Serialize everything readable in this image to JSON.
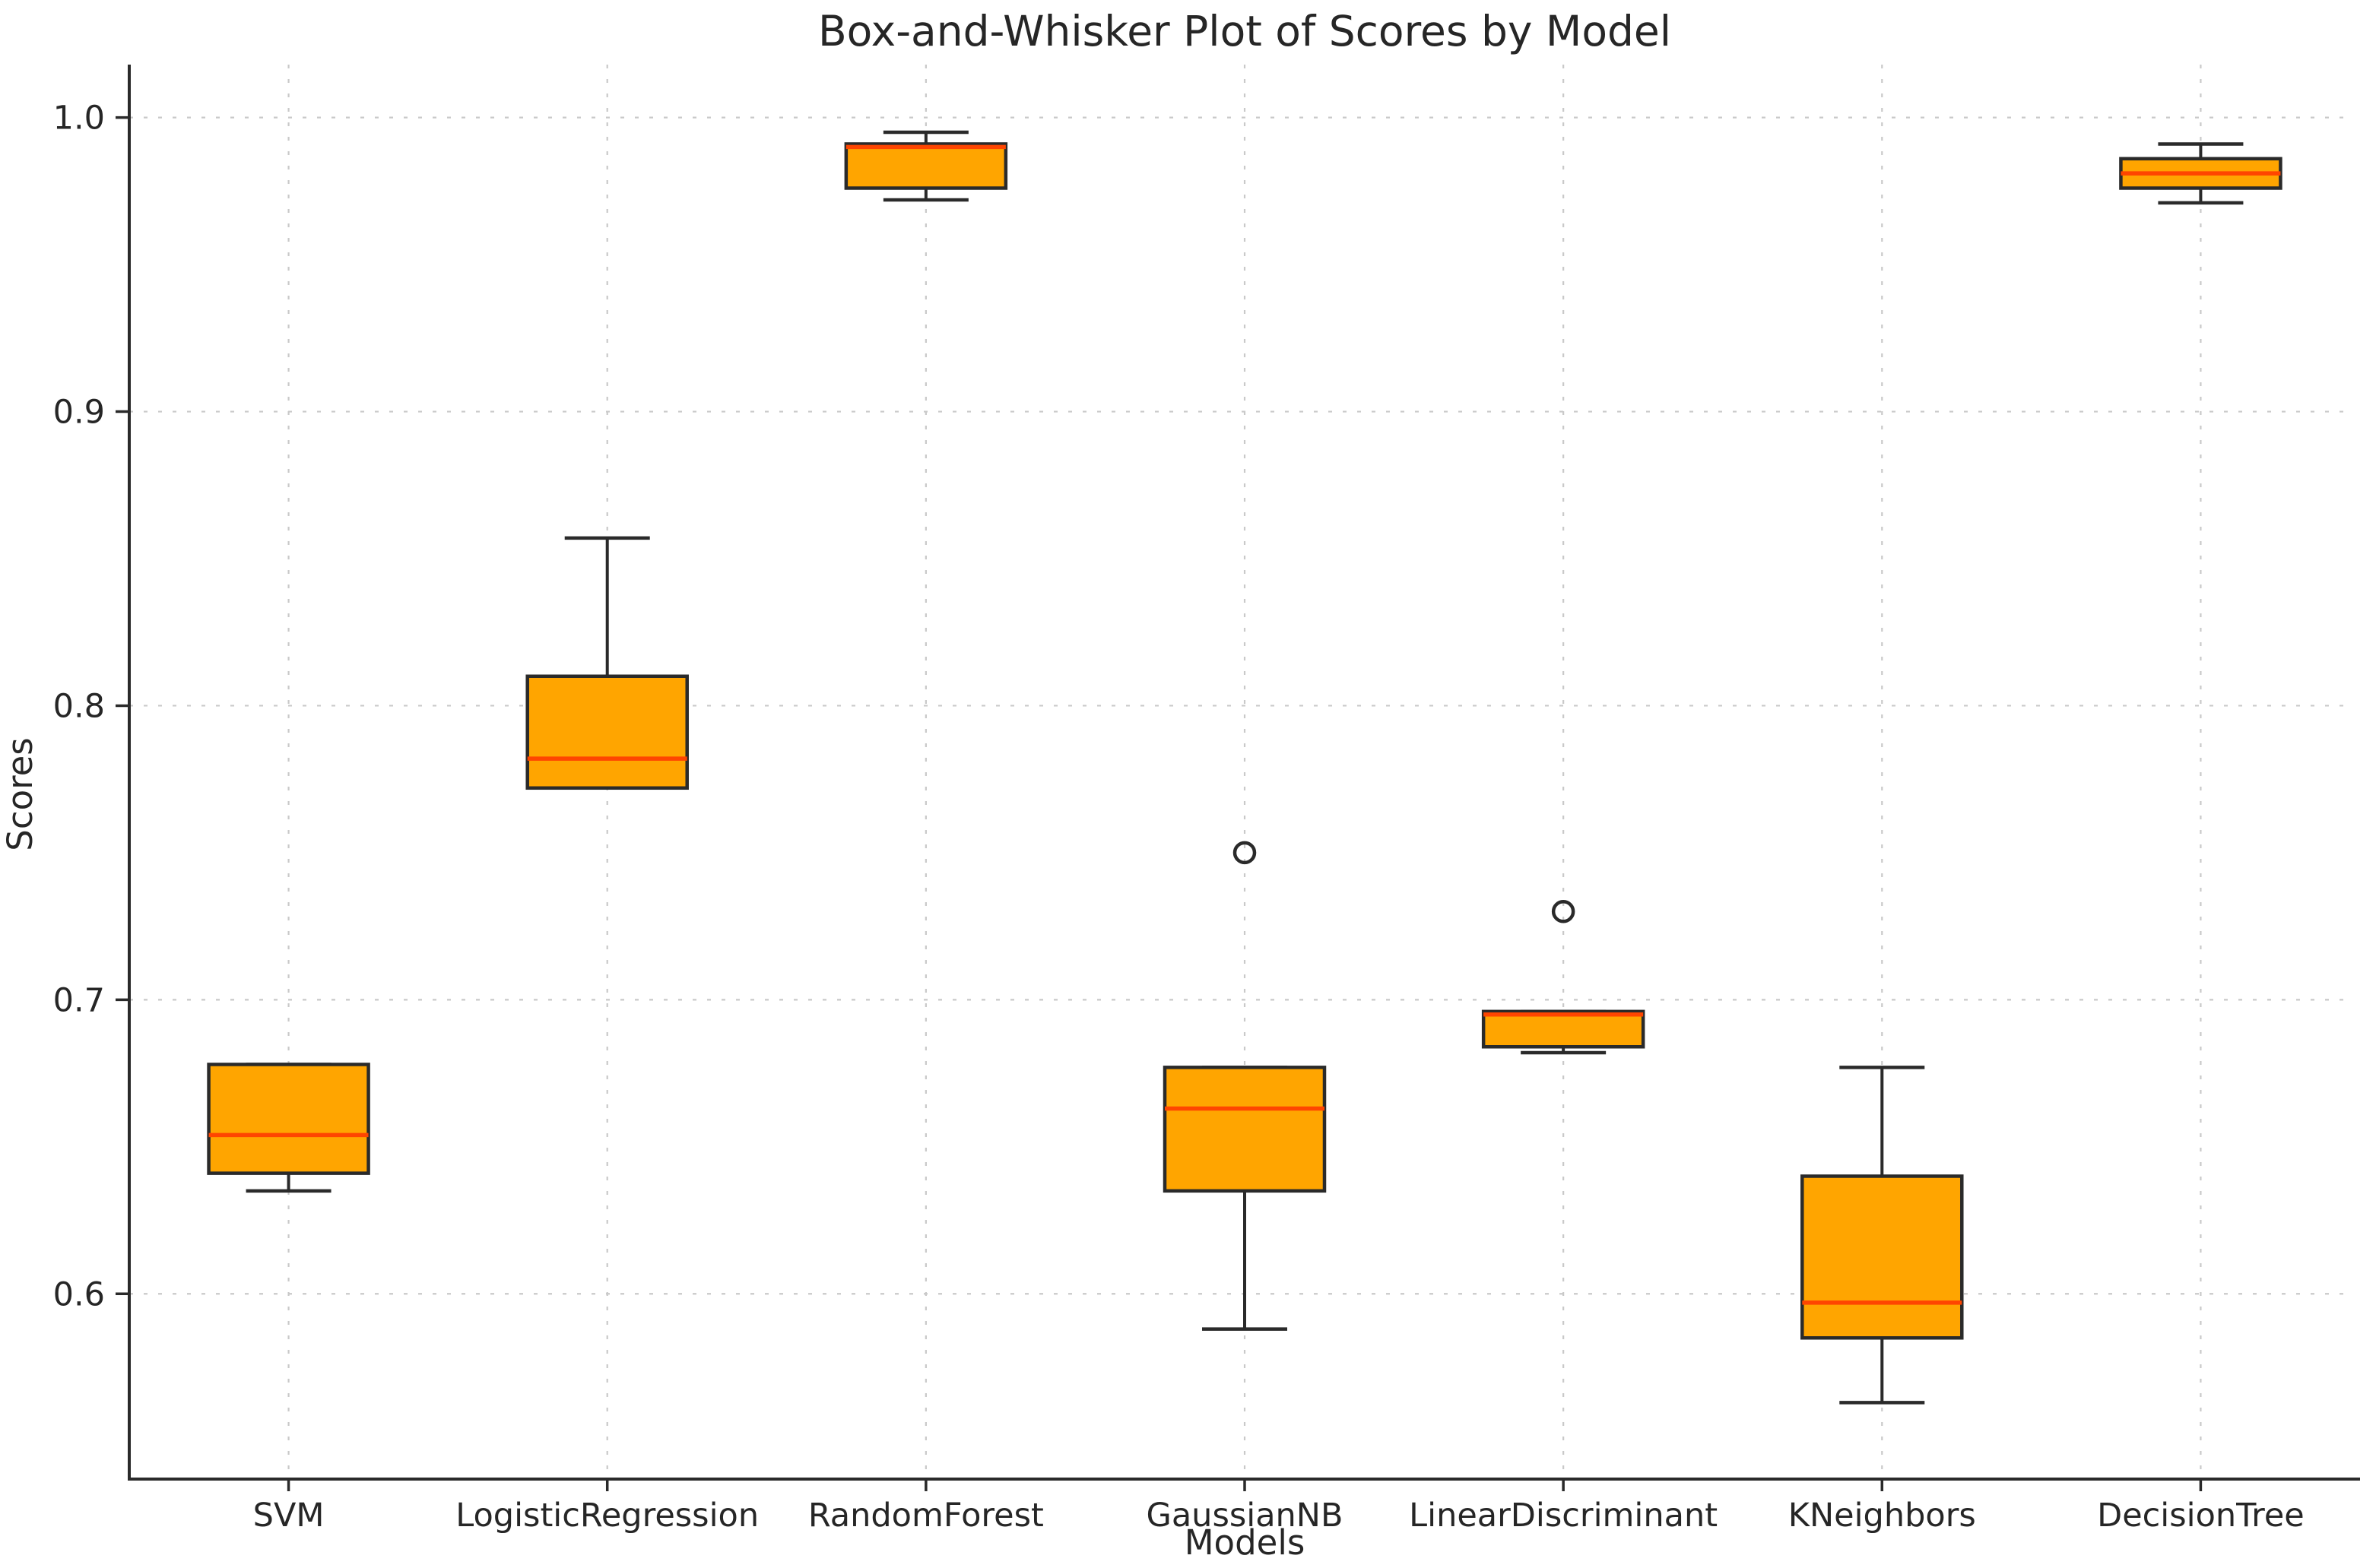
{
  "figure": {
    "title": "Box-and-Whisker Plot of Scores by Model"
  },
  "chart_data": {
    "type": "box",
    "title": "Box-and-Whisker Plot of Scores by Model",
    "xlabel": "Models",
    "ylabel": "Scores",
    "categories": [
      "SVM",
      "LogisticRegression",
      "RandomForest",
      "GaussianNB",
      "LinearDiscriminant",
      "KNeighbors",
      "DecisionTree"
    ],
    "ytick_labels": [
      "1.0",
      "0.9",
      "0.8",
      "0.7",
      "0.6"
    ],
    "ytick_values": [
      1.0,
      0.9,
      0.8,
      0.7,
      0.6
    ],
    "ylim": [
      0.537,
      1.018
    ],
    "grid": {
      "horizontal": true,
      "vertical": true,
      "style": "dotted"
    },
    "legend": "none",
    "boxes": [
      {
        "model": "SVM",
        "whisker_low": 0.635,
        "q1": 0.641,
        "median": 0.654,
        "q3": 0.678,
        "whisker_high": 0.678,
        "outliers": []
      },
      {
        "model": "LogisticRegression",
        "whisker_low": 0.772,
        "q1": 0.772,
        "median": 0.782,
        "q3": 0.81,
        "whisker_high": 0.857,
        "outliers": []
      },
      {
        "model": "RandomForest",
        "whisker_low": 0.972,
        "q1": 0.976,
        "median": 0.99,
        "q3": 0.991,
        "whisker_high": 0.995,
        "outliers": []
      },
      {
        "model": "GaussianNB",
        "whisker_low": 0.588,
        "q1": 0.635,
        "median": 0.663,
        "q3": 0.677,
        "whisker_high": 0.677,
        "outliers": [
          0.75
        ]
      },
      {
        "model": "LinearDiscriminant",
        "whisker_low": 0.682,
        "q1": 0.684,
        "median": 0.695,
        "q3": 0.696,
        "whisker_high": 0.696,
        "outliers": [
          0.73
        ]
      },
      {
        "model": "KNeighbors",
        "whisker_low": 0.563,
        "q1": 0.585,
        "median": 0.597,
        "q3": 0.64,
        "whisker_high": 0.677,
        "outliers": []
      },
      {
        "model": "DecisionTree",
        "whisker_low": 0.971,
        "q1": 0.976,
        "median": 0.981,
        "q3": 0.986,
        "whisker_high": 0.991,
        "outliers": []
      }
    ],
    "colors": {
      "box_fill": "#FFA500",
      "box_edge": "#2A2A2A",
      "median": "#FF4500",
      "whisker": "#2A2A2A",
      "cap": "#2A2A2A",
      "outlier_edge": "#2A2A2A",
      "gridline": "#C9C9C9",
      "axis": "#2A2A2A",
      "text": "#262626"
    }
  }
}
